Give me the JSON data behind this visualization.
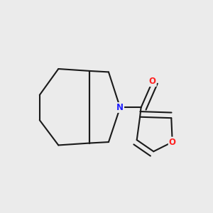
{
  "background_color": "#ebebeb",
  "bond_color": "#1a1a1a",
  "N_color": "#2020ff",
  "O_color": "#ff2020",
  "line_width": 1.5,
  "figsize": [
    3.0,
    3.0
  ],
  "dpi": 100,
  "xlim": [
    0.0,
    1.0
  ],
  "ylim": [
    0.0,
    1.0
  ]
}
